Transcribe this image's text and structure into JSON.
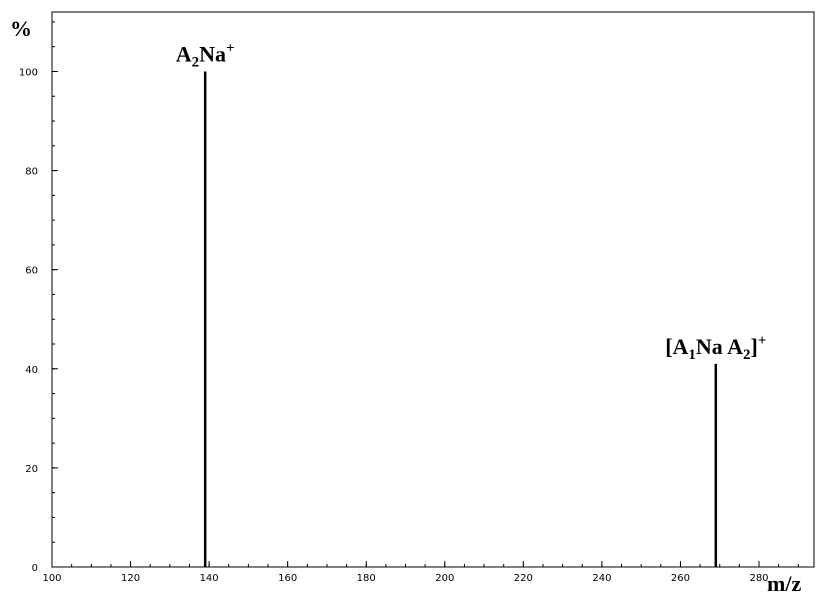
{
  "chart_data": {
    "type": "bar",
    "title": "",
    "xlabel": "m/z",
    "ylabel": "%",
    "xlim": [
      100,
      294
    ],
    "ylim": [
      0,
      112
    ],
    "x_ticks": [
      100,
      120,
      140,
      160,
      180,
      200,
      220,
      240,
      260,
      280
    ],
    "y_ticks": [
      0,
      20,
      40,
      60,
      80,
      100
    ],
    "x_minor_step": 5,
    "y_minor_step": 5,
    "grid": false,
    "legend": "none",
    "series": [
      {
        "values": [
          {
            "x": 139,
            "y": 100
          },
          {
            "x": 269,
            "y": 41
          }
        ]
      }
    ],
    "annotations": [
      {
        "x": 139,
        "y": 100,
        "parts": [
          [
            "A",
            ""
          ],
          [
            "2",
            "sub"
          ],
          [
            "Na",
            ""
          ],
          [
            "+",
            "sup"
          ]
        ]
      },
      {
        "x": 269,
        "y": 41,
        "parts": [
          [
            "[A",
            ""
          ],
          [
            "1",
            "sub"
          ],
          [
            "Na A",
            ""
          ],
          [
            "2",
            "sub"
          ],
          [
            "]",
            ""
          ],
          [
            "+",
            "sup"
          ]
        ]
      }
    ]
  }
}
